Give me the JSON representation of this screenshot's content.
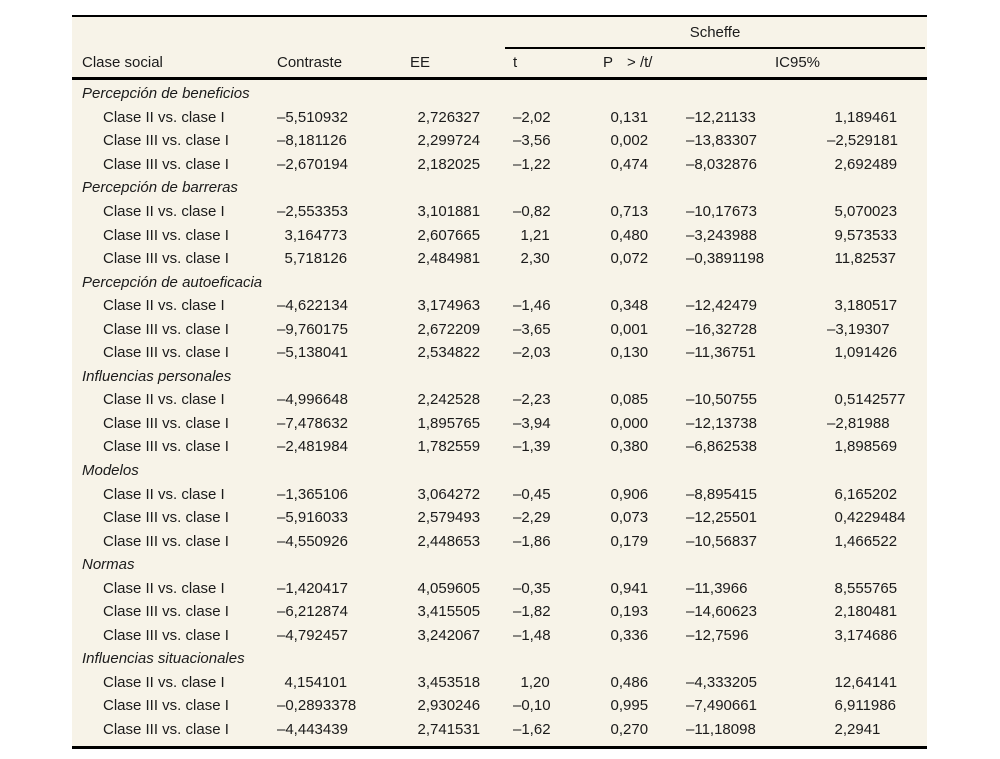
{
  "colors": {
    "table_background": "#f7f3e8",
    "text": "#1b1b1b",
    "rule": "#000000"
  },
  "table": {
    "spanner_label": "Scheffe",
    "columns": {
      "clase_social": "Clase social",
      "contraste": "Contraste",
      "ee": "EE",
      "t": "t",
      "p": "P",
      "p_gt": "> /t/",
      "ic95": "IC95%"
    },
    "sections": [
      {
        "name": "Percepción de beneficios",
        "rows": [
          {
            "label": "Clase II vs. clase I",
            "contraste": "–5,510932",
            "ee": "2,726327",
            "t": "–2,02",
            "p": "0,131",
            "ic_low": "–12,21133",
            "ic_high": "1,189461"
          },
          {
            "label": "Clase III vs. clase I",
            "contraste": "–8,181126",
            "ee": "2,299724",
            "t": "–3,56",
            "p": "0,002",
            "ic_low": "–13,83307",
            "ic_high": "–2,529181"
          },
          {
            "label": "Clase III vs. clase I",
            "contraste": "–2,670194",
            "ee": "2,182025",
            "t": "–1,22",
            "p": "0,474",
            "ic_low": "–8,032876",
            "ic_high": "2,692489"
          }
        ]
      },
      {
        "name": "Percepción de barreras",
        "rows": [
          {
            "label": "Clase II vs. clase I",
            "contraste": "–2,553353",
            "ee": "3,101881",
            "t": "–0,82",
            "p": "0,713",
            "ic_low": "–10,17673",
            "ic_high": "5,070023"
          },
          {
            "label": "Clase III vs. clase I",
            "contraste": "3,164773",
            "ee": "2,607665",
            "t": "1,21",
            "p": "0,480",
            "ic_low": "–3,243988",
            "ic_high": "9,573533"
          },
          {
            "label": "Clase III vs. clase I",
            "contraste": "5,718126",
            "ee": "2,484981",
            "t": "2,30",
            "p": "0,072",
            "ic_low": "–0,3891198",
            "ic_high": "11,82537"
          }
        ]
      },
      {
        "name": "Percepción de autoeficacia",
        "rows": [
          {
            "label": "Clase II vs. clase I",
            "contraste": "–4,622134",
            "ee": "3,174963",
            "t": "–1,46",
            "p": "0,348",
            "ic_low": "–12,42479",
            "ic_high": "3,180517"
          },
          {
            "label": "Clase III vs. clase I",
            "contraste": "–9,760175",
            "ee": "2,672209",
            "t": "–3,65",
            "p": "0,001",
            "ic_low": "–16,32728",
            "ic_high": "–3,19307"
          },
          {
            "label": "Clase III vs. clase I",
            "contraste": "–5,138041",
            "ee": "2,534822",
            "t": "–2,03",
            "p": "0,130",
            "ic_low": "–11,36751",
            "ic_high": "1,091426"
          }
        ]
      },
      {
        "name": "Influencias personales",
        "rows": [
          {
            "label": "Clase II vs. clase I",
            "contraste": "–4,996648",
            "ee": "2,242528",
            "t": "–2,23",
            "p": "0,085",
            "ic_low": "–10,50755",
            "ic_high": "0,5142577"
          },
          {
            "label": "Clase III vs. clase I",
            "contraste": "–7,478632",
            "ee": "1,895765",
            "t": "–3,94",
            "p": "0,000",
            "ic_low": "–12,13738",
            "ic_high": "–2,81988"
          },
          {
            "label": "Clase III vs. clase I",
            "contraste": "–2,481984",
            "ee": "1,782559",
            "t": "–1,39",
            "p": "0,380",
            "ic_low": "–6,862538",
            "ic_high": "1,898569"
          }
        ]
      },
      {
        "name": "Modelos",
        "rows": [
          {
            "label": "Clase II vs. clase I",
            "contraste": "–1,365106",
            "ee": "3,064272",
            "t": "–0,45",
            "p": "0,906",
            "ic_low": "–8,895415",
            "ic_high": "6,165202"
          },
          {
            "label": "Clase III vs. clase I",
            "contraste": "–5,916033",
            "ee": "2,579493",
            "t": "–2,29",
            "p": "0,073",
            "ic_low": "–12,25501",
            "ic_high": "0,4229484"
          },
          {
            "label": "Clase III vs. clase I",
            "contraste": "–4,550926",
            "ee": "2,448653",
            "t": "–1,86",
            "p": "0,179",
            "ic_low": "–10,56837",
            "ic_high": "1,466522"
          }
        ]
      },
      {
        "name": "Normas",
        "rows": [
          {
            "label": "Clase II vs. clase I",
            "contraste": "–1,420417",
            "ee": "4,059605",
            "t": "–0,35",
            "p": "0,941",
            "ic_low": "–11,3966",
            "ic_high": "8,555765"
          },
          {
            "label": "Clase III vs. clase I",
            "contraste": "–6,212874",
            "ee": "3,415505",
            "t": "–1,82",
            "p": "0,193",
            "ic_low": "–14,60623",
            "ic_high": "2,180481"
          },
          {
            "label": "Clase III vs. clase I",
            "contraste": "–4,792457",
            "ee": "3,242067",
            "t": "–1,48",
            "p": "0,336",
            "ic_low": "–12,7596",
            "ic_high": "3,174686"
          }
        ]
      },
      {
        "name": "Influencias situacionales",
        "rows": [
          {
            "label": "Clase II vs. clase I",
            "contraste": "4,154101",
            "ee": "3,453518",
            "t": "1,20",
            "p": "0,486",
            "ic_low": "–4,333205",
            "ic_high": "12,64141"
          },
          {
            "label": "Clase III vs. clase I",
            "contraste": "–0,2893378",
            "ee": "2,930246",
            "t": "–0,10",
            "p": "0,995",
            "ic_low": "–7,490661",
            "ic_high": "6,911986"
          },
          {
            "label": "Clase III vs. clase I",
            "contraste": "–4,443439",
            "ee": "2,741531",
            "t": "–1,62",
            "p": "0,270",
            "ic_low": "–11,18098",
            "ic_high": "2,2941"
          }
        ]
      }
    ]
  }
}
